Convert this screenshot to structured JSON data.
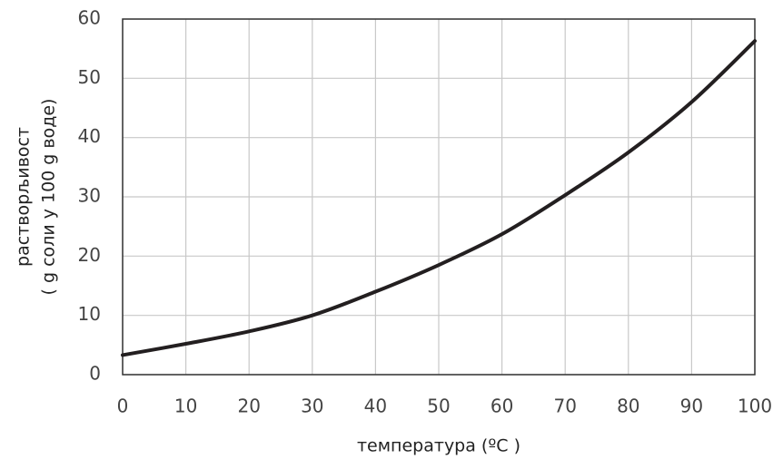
{
  "chart_data": {
    "type": "line",
    "x": [
      0,
      10,
      20,
      30,
      40,
      50,
      60,
      70,
      80,
      90,
      100
    ],
    "values": [
      3.3,
      5.2,
      7.3,
      10,
      14,
      18.5,
      23.7,
      30.3,
      37.5,
      46,
      56.3
    ],
    "color": "#231f20",
    "xlim": [
      0,
      100
    ],
    "xticks": [
      0,
      10,
      20,
      30,
      40,
      50,
      60,
      70,
      80,
      90,
      100
    ],
    "ylim": [
      0,
      60
    ],
    "yticks": [
      0,
      10,
      20,
      30,
      40,
      50,
      60
    ],
    "grid": true,
    "xlabel": "температура (ºC )",
    "ylabel": [
      "растворљивост",
      "( g соли у 100 g воде)"
    ]
  }
}
